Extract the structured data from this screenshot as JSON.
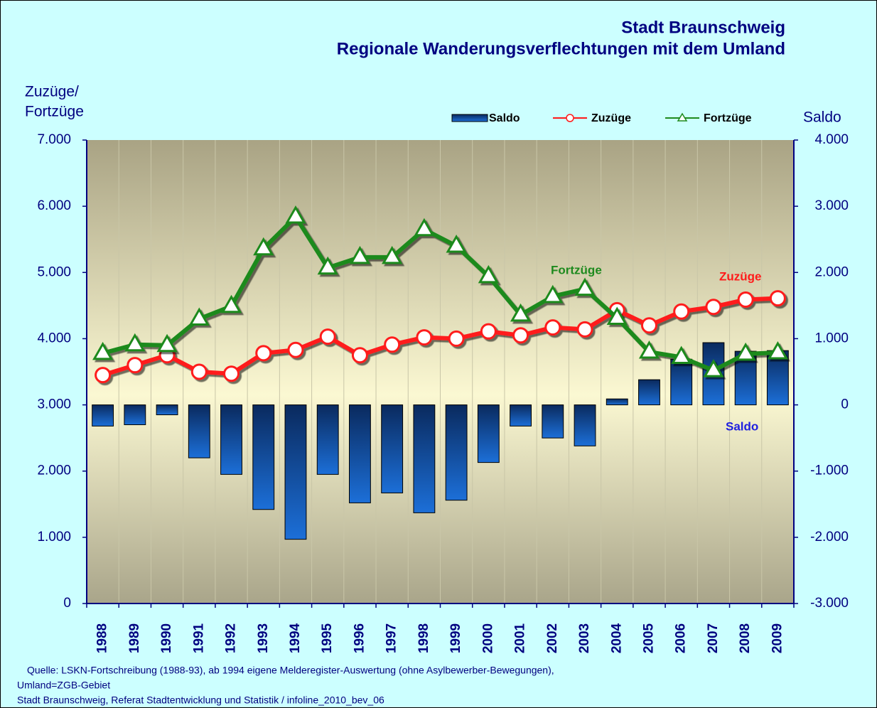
{
  "chart_data": {
    "type": "combo",
    "title": "Stadt Braunschweig",
    "subtitle": "Regionale Wanderungsverflechtungen mit dem Umland",
    "ylabel": [
      "Zuzüge/",
      "Fortzüge"
    ],
    "y2label": "Saldo",
    "categories": [
      "1988",
      "1989",
      "1990",
      "1991",
      "1992",
      "1993",
      "1994",
      "1995",
      "1996",
      "1997",
      "1998",
      "1999",
      "2000",
      "2001",
      "2002",
      "2003",
      "2004",
      "2005",
      "2006",
      "2007",
      "2008",
      "2009"
    ],
    "series": [
      {
        "name": "Saldo",
        "type": "bar",
        "axis": "y2",
        "color": "#1a4fa0",
        "values": [
          -320,
          -300,
          -150,
          -800,
          -1050,
          -1580,
          -2030,
          -1050,
          -1480,
          -1330,
          -1630,
          -1440,
          -870,
          -320,
          -500,
          -620,
          90,
          380,
          690,
          940,
          810,
          820
        ]
      },
      {
        "name": "Zuzüge",
        "type": "line",
        "marker": "circle",
        "color": "#ff1a1a",
        "values": [
          3450,
          3600,
          3750,
          3500,
          3470,
          3780,
          3830,
          4030,
          3750,
          3910,
          4020,
          4000,
          4110,
          4050,
          4170,
          4140,
          4430,
          4200,
          4410,
          4480,
          4590,
          4610
        ]
      },
      {
        "name": "Fortzüge",
        "type": "line",
        "marker": "triangle",
        "color": "#1e8a1e",
        "values": [
          3780,
          3910,
          3900,
          4300,
          4490,
          5360,
          5840,
          5070,
          5230,
          5230,
          5650,
          5400,
          4940,
          4360,
          4640,
          4750,
          4310,
          3800,
          3720,
          3520,
          3770,
          3790
        ]
      }
    ],
    "ylim": [
      0,
      7000
    ],
    "yticks": [
      0,
      {
        "value": 1000,
        "label": "1.000"
      },
      {
        "value": 2000,
        "label": "2.000"
      },
      {
        "value": 3000,
        "label": "3.000"
      },
      {
        "value": 4000,
        "label": "4.000"
      },
      {
        "value": 5000,
        "label": "5.000"
      },
      {
        "value": 6000,
        "label": "6.000"
      },
      {
        "value": 7000,
        "label": "7.000"
      }
    ],
    "y2lim": [
      -3000,
      4000
    ],
    "y2ticks": [
      {
        "value": -3000,
        "label": "-3.000"
      },
      {
        "value": -2000,
        "label": "-2.000"
      },
      {
        "value": -1000,
        "label": "-1.000"
      },
      0,
      {
        "value": 1000,
        "label": "1.000"
      },
      {
        "value": 2000,
        "label": "2.000"
      },
      {
        "value": 3000,
        "label": "3.000"
      },
      {
        "value": 4000,
        "label": "4.000"
      }
    ],
    "grid": "x",
    "annotations": [
      {
        "text": "Fortzüge",
        "color": "#1e8a1e"
      },
      {
        "text": "Zuzüge",
        "color": "#ff1a1a"
      },
      {
        "text": "Saldo",
        "color": "#2020e0"
      }
    ],
    "source": [
      "Quelle: LSKN-Fortschreibung (1988-93), ab 1994 eigene Melderegister-Auswertung (ohne Asylbewerber-Bewegungen),",
      "Umland=ZGB-Gebiet",
      "Stadt Braunschweig, Referat Stadtentwicklung und Statistik / infoline_2010_bev_06"
    ]
  }
}
